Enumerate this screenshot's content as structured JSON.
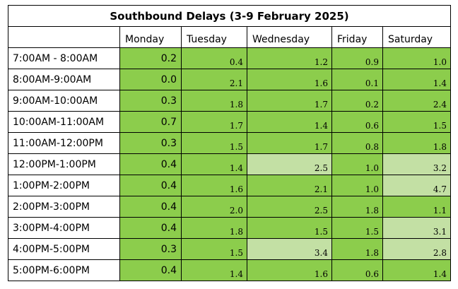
{
  "title": "Southbound Delays (3-9 February 2025)",
  "columns": [
    "Monday",
    "Tuesday",
    "Wednesday",
    "Friday",
    "Saturday"
  ],
  "rows": [
    {
      "label": "7:00AM - 8:00AM",
      "values": [
        "0.2",
        "0.4",
        "1.2",
        "0.9",
        "1.0"
      ]
    },
    {
      "label": "8:00AM-9:00AM",
      "values": [
        "0.0",
        "2.1",
        "1.6",
        "0.1",
        "1.4"
      ]
    },
    {
      "label": "9:00AM-10:00AM",
      "values": [
        "0.3",
        "1.8",
        "1.7",
        "0.2",
        "2.4"
      ]
    },
    {
      "label": "10:00AM-11:00AM",
      "values": [
        "0.7",
        "1.7",
        "1.4",
        "0.6",
        "1.5"
      ]
    },
    {
      "label": "11:00AM-12:00PM",
      "values": [
        "0.3",
        "1.5",
        "1.7",
        "0.8",
        "1.8"
      ]
    },
    {
      "label": "12:00PM-1:00PM",
      "values": [
        "0.4",
        "1.4",
        "2.5",
        "1.0",
        "3.2"
      ]
    },
    {
      "label": "1:00PM-2:00PM",
      "values": [
        "0.4",
        "1.6",
        "2.1",
        "1.0",
        "4.7"
      ]
    },
    {
      "label": "2:00PM-3:00PM",
      "values": [
        "0.4",
        "2.0",
        "2.5",
        "1.8",
        "1.1"
      ]
    },
    {
      "label": "3:00PM-4:00PM",
      "values": [
        "0.4",
        "1.8",
        "1.5",
        "1.5",
        "3.1"
      ]
    },
    {
      "label": "4:00PM-5:00PM",
      "values": [
        "0.3",
        "1.5",
        "3.4",
        "1.8",
        "2.8"
      ]
    },
    {
      "label": "5:00PM-6:00PM",
      "values": [
        "0.4",
        "1.4",
        "1.6",
        "0.6",
        "1.4"
      ]
    }
  ],
  "highlighted_cells": [
    {
      "row": 5,
      "col": 2
    },
    {
      "row": 5,
      "col": 4
    },
    {
      "row": 6,
      "col": 4
    },
    {
      "row": 8,
      "col": 4
    },
    {
      "row": 9,
      "col": 2
    },
    {
      "row": 9,
      "col": 4
    }
  ],
  "colors": {
    "cell_green": "#8ccd4c",
    "cell_light_green": "#c3e0a4"
  }
}
